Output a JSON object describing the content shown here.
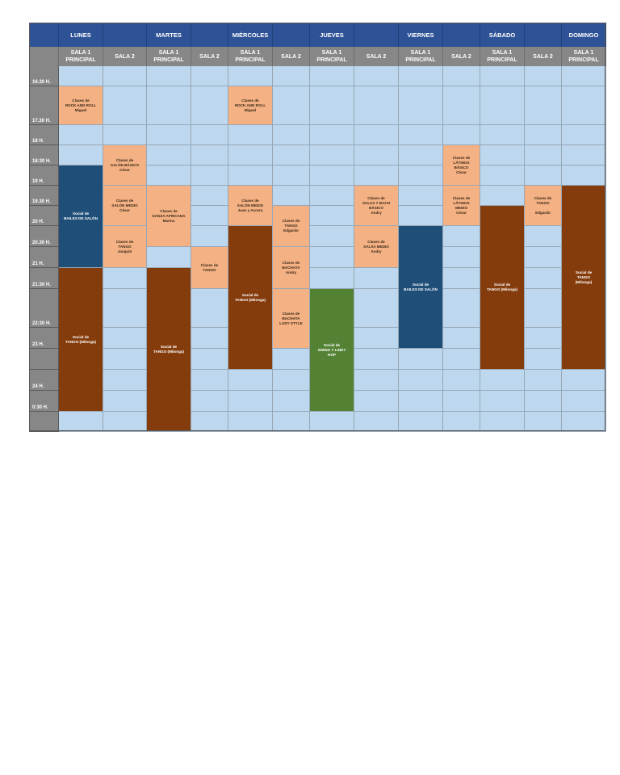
{
  "colors": {
    "header_day": "#2e5296",
    "header_sala": "#878787",
    "empty_cell": "#bdd7ee",
    "class_event": "#f4b183",
    "social_tango": "#843c0c",
    "social_bailes_salon": "#1f4e79",
    "social_swing": "#548235"
  },
  "days": [
    "LUNES",
    "MARTES",
    "MIÉRCOLES",
    "JUEVES",
    "VIERNES",
    "SÁBADO",
    "DOMINGO"
  ],
  "rooms": [
    {
      "day": "LUNES",
      "label": "SALA 1\nPRINCIPAL"
    },
    {
      "day": "LUNES",
      "label": "SALA 2"
    },
    {
      "day": "MARTES",
      "label": "SALA 1\nPRINCIPAL"
    },
    {
      "day": "MARTES",
      "label": "SALA 2"
    },
    {
      "day": "MIÉRCOLES",
      "label": "SALA 1\nPRINCIPAL"
    },
    {
      "day": "MIÉRCOLES",
      "label": "SALA 2"
    },
    {
      "day": "JUEVES",
      "label": "SALA 1\nPRINCIPAL"
    },
    {
      "day": "JUEVES",
      "label": "SALA 2"
    },
    {
      "day": "VIERNES",
      "label": "SALA 1\nPRINCIPAL"
    },
    {
      "day": "VIERNES",
      "label": "SALA 2"
    },
    {
      "day": "SÁBADO",
      "label": "SALA 1\nPRINCIPAL"
    },
    {
      "day": "SÁBADO",
      "label": "SALA 2"
    },
    {
      "day": "DOMINGO",
      "label": "SALA 1\nPRINCIPAL"
    }
  ],
  "time_rows": [
    "16.30 H.",
    "17.30 H.",
    "18 H.",
    "18:30 H.",
    "19 H.",
    "19.30 H.",
    "20 H.",
    "20.30 H.",
    "21 H.",
    "21:30 H.",
    "22:30 H.",
    "23 H.",
    "",
    "24 H.",
    "0:30 H.",
    ""
  ],
  "events": [
    {
      "col": 0,
      "row": 1,
      "span": 1,
      "style": "salmon",
      "text": "Clases de\nROCK AND ROLL\nMiguel"
    },
    {
      "col": 4,
      "row": 1,
      "span": 1,
      "style": "salmon",
      "text": "Clases de\nROCK AND ROLL\nMiguel"
    },
    {
      "col": 1,
      "row": 3,
      "span": 2,
      "style": "salmon",
      "text": "Clases de\nSALÓN BÁSICO\nCésar"
    },
    {
      "col": 9,
      "row": 3,
      "span": 2,
      "style": "salmon",
      "text": "Clases de\nLÁTINOS\nBÁSICO\nCésar"
    },
    {
      "col": 0,
      "row": 4,
      "span": 5,
      "style": "navy",
      "text": "Social de\nBAILES DE SALÓN"
    },
    {
      "col": 1,
      "row": 5,
      "span": 2,
      "style": "salmon",
      "text": "Clases de\nSALÓN MEDIO\nCésar"
    },
    {
      "col": 2,
      "row": 5,
      "span": 3,
      "style": "salmon",
      "text": "Clases de\nDANZA AFRICANA\nMarina"
    },
    {
      "col": 4,
      "row": 5,
      "span": 2,
      "style": "salmon",
      "text": "Clases de\nSALÓN MEDIO\nJuan y Aurora"
    },
    {
      "col": 7,
      "row": 5,
      "span": 2,
      "style": "salmon",
      "text": "Clases de\nSALSA Y BACH\nBÁSICO\nAndry"
    },
    {
      "col": 9,
      "row": 5,
      "span": 2,
      "style": "salmon",
      "text": "Clases de\nLÁTINOS\nMEDIO\nCésar"
    },
    {
      "col": 11,
      "row": 5,
      "span": 2,
      "style": "salmon",
      "text": "Clases de\nTANGO\n\nEdgardo"
    },
    {
      "col": 12,
      "row": 5,
      "span": 8,
      "style": "brown",
      "text": "Social de\nTANGO\n(Milonga)"
    },
    {
      "col": 5,
      "row": 6,
      "span": 2,
      "style": "salmon",
      "text": "Clases de\nTANGO\nEdgardo"
    },
    {
      "col": 10,
      "row": 6,
      "span": 7,
      "style": "brown",
      "text": "Social de\nTANGO (Milonga)"
    },
    {
      "col": 1,
      "row": 7,
      "span": 2,
      "style": "salmon",
      "text": "Clases de\nTANGO\nJoaquín"
    },
    {
      "col": 4,
      "row": 7,
      "span": 6,
      "style": "brown",
      "text": "Social de\nTANGO (Milonga)"
    },
    {
      "col": 7,
      "row": 7,
      "span": 2,
      "style": "salmon",
      "text": "Clases de\nSALSA MEDIO\nAndry"
    },
    {
      "col": 8,
      "row": 7,
      "span": 5,
      "style": "navy",
      "text": "Social de\nBAILES DE SALÓN"
    },
    {
      "col": 3,
      "row": 8,
      "span": 2,
      "style": "salmon",
      "text": "Clases de\nTANGO"
    },
    {
      "col": 5,
      "row": 8,
      "span": 2,
      "style": "salmon",
      "text": "Clases de\nBACHATA\nAndry"
    },
    {
      "col": 0,
      "row": 9,
      "span": 6,
      "style": "brown",
      "text": "Social de\nTANGO (Milonga)"
    },
    {
      "col": 2,
      "row": 9,
      "span": 7,
      "style": "brown",
      "text": "Social de\nTANGO (Milonga)"
    },
    {
      "col": 5,
      "row": 10,
      "span": 2,
      "style": "salmon",
      "text": "Clases de\nBACHATA\nLADY STYLE"
    },
    {
      "col": 6,
      "row": 10,
      "span": 5,
      "style": "green",
      "text": "Social de\nSWING Y LINDY\nHOP"
    }
  ]
}
